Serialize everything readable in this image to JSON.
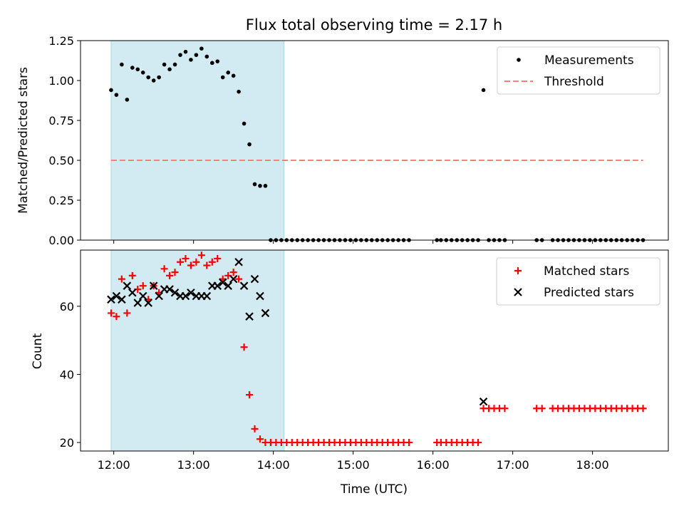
{
  "chart_data": [
    {
      "type": "scatter",
      "title": "Flux total observing time = 2.17 h",
      "xlabel": "",
      "ylabel": "Matched/Predicted stars",
      "xlim": [
        "11:35",
        "18:57"
      ],
      "ylim": [
        0,
        1.25
      ],
      "xticks": [
        "12:00",
        "13:00",
        "14:00",
        "15:00",
        "16:00",
        "17:00",
        "18:00"
      ],
      "yticks": [
        "0.00",
        "0.25",
        "0.50",
        "0.75",
        "1.00",
        "1.25"
      ],
      "shaded_interval": [
        "11:58",
        "14:08"
      ],
      "shade_color": "#add8e6",
      "legend_position": "upper right",
      "series": [
        {
          "name": "Measurements",
          "kind": "points",
          "color": "#000000",
          "points": [
            [
              "11:58",
              0.94
            ],
            [
              "12:02",
              0.91
            ],
            [
              "12:06",
              1.1
            ],
            [
              "12:10",
              0.88
            ],
            [
              "12:14",
              1.08
            ],
            [
              "12:18",
              1.07
            ],
            [
              "12:22",
              1.05
            ],
            [
              "12:26",
              1.02
            ],
            [
              "12:30",
              1.0
            ],
            [
              "12:34",
              1.02
            ],
            [
              "12:38",
              1.1
            ],
            [
              "12:42",
              1.07
            ],
            [
              "12:46",
              1.1
            ],
            [
              "12:50",
              1.16
            ],
            [
              "12:54",
              1.18
            ],
            [
              "12:58",
              1.13
            ],
            [
              "13:02",
              1.16
            ],
            [
              "13:06",
              1.2
            ],
            [
              "13:10",
              1.15
            ],
            [
              "13:14",
              1.11
            ],
            [
              "13:18",
              1.12
            ],
            [
              "13:22",
              1.02
            ],
            [
              "13:26",
              1.05
            ],
            [
              "13:30",
              1.03
            ],
            [
              "13:34",
              0.93
            ],
            [
              "13:38",
              0.73
            ],
            [
              "13:42",
              0.6
            ],
            [
              "13:46",
              0.35
            ],
            [
              "13:50",
              0.34
            ],
            [
              "13:54",
              0.34
            ],
            [
              "13:58",
              0.0
            ],
            [
              "14:02",
              0.0
            ],
            [
              "14:06",
              0.0
            ],
            [
              "14:10",
              0.0
            ],
            [
              "14:14",
              0.0
            ],
            [
              "14:18",
              0.0
            ],
            [
              "14:22",
              0.0
            ],
            [
              "14:26",
              0.0
            ],
            [
              "14:30",
              0.0
            ],
            [
              "14:34",
              0.0
            ],
            [
              "14:38",
              0.0
            ],
            [
              "14:42",
              0.0
            ],
            [
              "14:46",
              0.0
            ],
            [
              "14:50",
              0.0
            ],
            [
              "14:54",
              0.0
            ],
            [
              "14:58",
              0.0
            ],
            [
              "15:02",
              0.0
            ],
            [
              "15:06",
              0.0
            ],
            [
              "15:10",
              0.0
            ],
            [
              "15:14",
              0.0
            ],
            [
              "15:18",
              0.0
            ],
            [
              "15:22",
              0.0
            ],
            [
              "15:26",
              0.0
            ],
            [
              "15:30",
              0.0
            ],
            [
              "15:34",
              0.0
            ],
            [
              "15:38",
              0.0
            ],
            [
              "15:42",
              0.0
            ],
            [
              "16:03",
              0.0
            ],
            [
              "16:06",
              0.0
            ],
            [
              "16:10",
              0.0
            ],
            [
              "16:14",
              0.0
            ],
            [
              "16:18",
              0.0
            ],
            [
              "16:22",
              0.0
            ],
            [
              "16:26",
              0.0
            ],
            [
              "16:30",
              0.0
            ],
            [
              "16:34",
              0.0
            ],
            [
              "16:38",
              0.94
            ],
            [
              "16:42",
              0.0
            ],
            [
              "16:46",
              0.0
            ],
            [
              "16:50",
              0.0
            ],
            [
              "16:54",
              0.0
            ],
            [
              "17:18",
              0.0
            ],
            [
              "17:22",
              0.0
            ],
            [
              "17:30",
              0.0
            ],
            [
              "17:34",
              0.0
            ],
            [
              "17:38",
              0.0
            ],
            [
              "17:42",
              0.0
            ],
            [
              "17:46",
              0.0
            ],
            [
              "17:50",
              0.0
            ],
            [
              "17:54",
              0.0
            ],
            [
              "17:58",
              0.0
            ],
            [
              "18:02",
              0.0
            ],
            [
              "18:06",
              0.0
            ],
            [
              "18:10",
              0.0
            ],
            [
              "18:14",
              0.0
            ],
            [
              "18:18",
              0.0
            ],
            [
              "18:22",
              0.0
            ],
            [
              "18:26",
              0.0
            ],
            [
              "18:30",
              0.0
            ],
            [
              "18:34",
              0.0
            ],
            [
              "18:38",
              0.0
            ]
          ]
        },
        {
          "name": "Threshold",
          "kind": "dashed-line",
          "color": "#ff7f7f",
          "points": [
            [
              "11:58",
              0.5
            ],
            [
              "18:38",
              0.5
            ]
          ]
        }
      ]
    },
    {
      "type": "scatter",
      "title": "",
      "xlabel": "Time (UTC)",
      "ylabel": "Count",
      "xlim": [
        "11:35",
        "18:57"
      ],
      "ylim": [
        17.5,
        76.5
      ],
      "xticks": [
        "12:00",
        "13:00",
        "14:00",
        "15:00",
        "16:00",
        "17:00",
        "18:00"
      ],
      "yticks": [
        "20",
        "40",
        "60"
      ],
      "shaded_interval": [
        "11:58",
        "14:08"
      ],
      "shade_color": "#add8e6",
      "legend_position": "upper right",
      "series": [
        {
          "name": "Matched stars",
          "kind": "plus",
          "color": "#ff0000",
          "points": [
            [
              "11:58",
              58
            ],
            [
              "12:02",
              57
            ],
            [
              "12:06",
              68
            ],
            [
              "12:10",
              58
            ],
            [
              "12:14",
              69
            ],
            [
              "12:18",
              65
            ],
            [
              "12:22",
              66
            ],
            [
              "12:26",
              62
            ],
            [
              "12:30",
              66
            ],
            [
              "12:34",
              64
            ],
            [
              "12:38",
              71
            ],
            [
              "12:42",
              69
            ],
            [
              "12:46",
              70
            ],
            [
              "12:50",
              73
            ],
            [
              "12:54",
              74
            ],
            [
              "12:58",
              72
            ],
            [
              "13:02",
              73
            ],
            [
              "13:06",
              75
            ],
            [
              "13:10",
              72
            ],
            [
              "13:14",
              73
            ],
            [
              "13:18",
              74
            ],
            [
              "13:22",
              68
            ],
            [
              "13:26",
              69
            ],
            [
              "13:30",
              70
            ],
            [
              "13:34",
              68
            ],
            [
              "13:38",
              48
            ],
            [
              "13:42",
              34
            ],
            [
              "13:46",
              24
            ],
            [
              "13:50",
              21
            ],
            [
              "13:54",
              20
            ],
            [
              "13:58",
              20
            ],
            [
              "14:02",
              20
            ],
            [
              "14:06",
              20
            ],
            [
              "14:10",
              20
            ],
            [
              "14:14",
              20
            ],
            [
              "14:18",
              20
            ],
            [
              "14:22",
              20
            ],
            [
              "14:26",
              20
            ],
            [
              "14:30",
              20
            ],
            [
              "14:34",
              20
            ],
            [
              "14:38",
              20
            ],
            [
              "14:42",
              20
            ],
            [
              "14:46",
              20
            ],
            [
              "14:50",
              20
            ],
            [
              "14:54",
              20
            ],
            [
              "14:58",
              20
            ],
            [
              "15:02",
              20
            ],
            [
              "15:06",
              20
            ],
            [
              "15:10",
              20
            ],
            [
              "15:14",
              20
            ],
            [
              "15:18",
              20
            ],
            [
              "15:22",
              20
            ],
            [
              "15:26",
              20
            ],
            [
              "15:30",
              20
            ],
            [
              "15:34",
              20
            ],
            [
              "15:38",
              20
            ],
            [
              "15:42",
              20
            ],
            [
              "16:03",
              20
            ],
            [
              "16:06",
              20
            ],
            [
              "16:10",
              20
            ],
            [
              "16:14",
              20
            ],
            [
              "16:18",
              20
            ],
            [
              "16:22",
              20
            ],
            [
              "16:26",
              20
            ],
            [
              "16:30",
              20
            ],
            [
              "16:34",
              20
            ],
            [
              "16:38",
              30
            ],
            [
              "16:42",
              30
            ],
            [
              "16:46",
              30
            ],
            [
              "16:50",
              30
            ],
            [
              "16:54",
              30
            ],
            [
              "17:18",
              30
            ],
            [
              "17:22",
              30
            ],
            [
              "17:30",
              30
            ],
            [
              "17:34",
              30
            ],
            [
              "17:38",
              30
            ],
            [
              "17:42",
              30
            ],
            [
              "17:46",
              30
            ],
            [
              "17:50",
              30
            ],
            [
              "17:54",
              30
            ],
            [
              "17:58",
              30
            ],
            [
              "18:02",
              30
            ],
            [
              "18:06",
              30
            ],
            [
              "18:10",
              30
            ],
            [
              "18:14",
              30
            ],
            [
              "18:18",
              30
            ],
            [
              "18:22",
              30
            ],
            [
              "18:26",
              30
            ],
            [
              "18:30",
              30
            ],
            [
              "18:34",
              30
            ],
            [
              "18:38",
              30
            ]
          ]
        },
        {
          "name": "Predicted stars",
          "kind": "x",
          "color": "#000000",
          "points": [
            [
              "11:58",
              62
            ],
            [
              "12:02",
              63
            ],
            [
              "12:06",
              62
            ],
            [
              "12:10",
              66
            ],
            [
              "12:14",
              64
            ],
            [
              "12:18",
              61
            ],
            [
              "12:22",
              63
            ],
            [
              "12:26",
              61
            ],
            [
              "12:30",
              66
            ],
            [
              "12:34",
              63
            ],
            [
              "12:38",
              65
            ],
            [
              "12:42",
              65
            ],
            [
              "12:46",
              64
            ],
            [
              "12:50",
              63
            ],
            [
              "12:54",
              63
            ],
            [
              "12:58",
              64
            ],
            [
              "13:02",
              63
            ],
            [
              "13:06",
              63
            ],
            [
              "13:10",
              63
            ],
            [
              "13:14",
              66
            ],
            [
              "13:18",
              66
            ],
            [
              "13:22",
              67
            ],
            [
              "13:26",
              66
            ],
            [
              "13:30",
              68
            ],
            [
              "13:34",
              73
            ],
            [
              "13:38",
              66
            ],
            [
              "13:42",
              57
            ],
            [
              "13:46",
              68
            ],
            [
              "13:50",
              63
            ],
            [
              "13:54",
              58
            ],
            [
              "16:38",
              32
            ]
          ]
        }
      ]
    }
  ]
}
